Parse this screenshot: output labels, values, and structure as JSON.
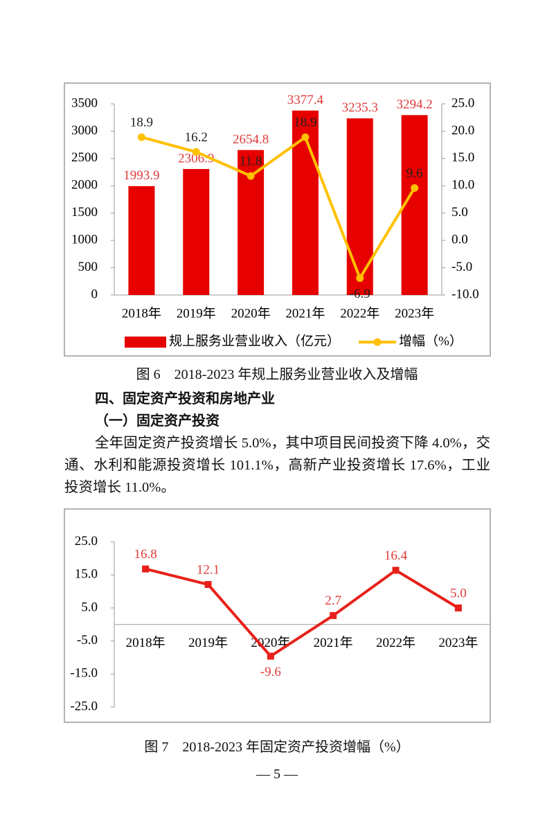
{
  "chart_data": [
    {
      "type": "combo",
      "caption": "图 6　2018-2023 年规上服务业营业收入及增幅",
      "categories": [
        "2018年",
        "2019年",
        "2020年",
        "2021年",
        "2022年",
        "2023年"
      ],
      "series": [
        {
          "name": "规上服务业营业收入（亿元）",
          "type": "bar",
          "color": "#e60000",
          "label_color": "#e03a3a",
          "values": [
            1993.9,
            2306.9,
            2654.8,
            3377.4,
            3235.3,
            3294.2
          ]
        },
        {
          "name": "增幅（%）",
          "type": "line",
          "axis": "y2",
          "color": "#ffc000",
          "label_color": "#222222",
          "values": [
            18.9,
            16.2,
            11.8,
            18.9,
            -6.9,
            9.6
          ]
        }
      ],
      "ylim": [
        0,
        3500
      ],
      "yticks": [
        0,
        500,
        1000,
        1500,
        2000,
        2500,
        3000,
        3500
      ],
      "y2lim": [
        -10,
        25
      ],
      "y2ticks": [
        {
          "value": -10,
          "label": "-10.0"
        },
        {
          "value": -5,
          "label": "-5.0"
        },
        {
          "value": 0,
          "label": "0.0"
        },
        {
          "value": 5,
          "label": "5.0"
        },
        {
          "value": 10,
          "label": "10.0"
        },
        {
          "value": 15,
          "label": "15.0"
        },
        {
          "value": 20,
          "label": "20.0"
        },
        {
          "value": 25,
          "label": "25.0"
        }
      ],
      "legend": "bottom"
    },
    {
      "type": "line",
      "caption": "图 7　2018-2023 年固定资产投资增幅（%）",
      "categories": [
        "2018年",
        "2019年",
        "2020年",
        "2021年",
        "2022年",
        "2023年"
      ],
      "series": [
        {
          "type": "line",
          "color": "#e8201a",
          "label_color": "#e03a3a",
          "values": [
            16.8,
            12.1,
            -9.6,
            2.7,
            16.4,
            5.0
          ],
          "value_labels": [
            "16.8",
            "12.1",
            "-9.6",
            "2.7",
            "16.4",
            "5.0"
          ]
        }
      ],
      "ylim": [
        -25,
        25
      ],
      "yticks": [
        {
          "value": -25,
          "label": "-25.0"
        },
        {
          "value": -15,
          "label": "-15.0"
        },
        {
          "value": -5,
          "label": "-5.0"
        },
        {
          "value": 5,
          "label": "5.0"
        },
        {
          "value": 15,
          "label": "15.0"
        },
        {
          "value": 25,
          "label": "25.0"
        }
      ]
    }
  ],
  "document": {
    "heading": "四、固定资产投资和房地产业",
    "subheading": "（一）固定资产投资",
    "paragraph": "全年固定资产投资增长 5.0%，其中项目民间投资下降 4.0%，交通、水利和能源投资增长 101.1%，高新产业投资增长 17.6%，工业投资增长 11.0%。",
    "page_number": "— 5 —"
  }
}
